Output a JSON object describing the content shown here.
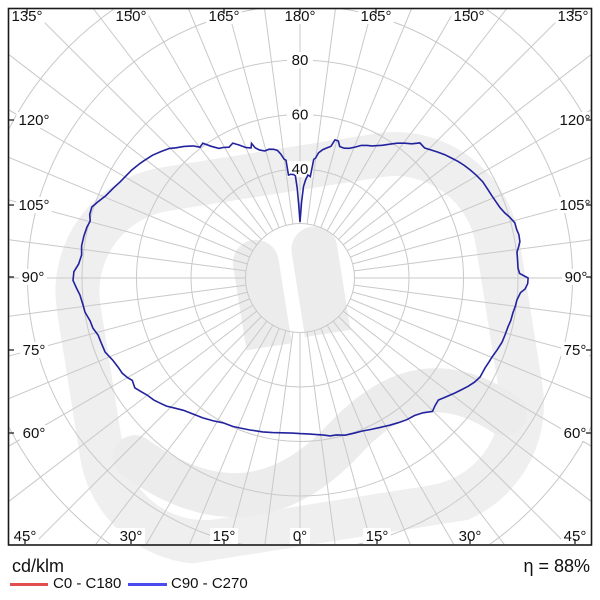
{
  "chart": {
    "unit_label": "cd/klm",
    "efficiency_text": "η = 88%",
    "angle_ring_labels": [
      "135°",
      "150°",
      "165°",
      "180°",
      "165°",
      "150°",
      "135°",
      "120°",
      "105°",
      "90°",
      "75°",
      "60°",
      "120°",
      "105°",
      "90°",
      "75°",
      "60°",
      "45°",
      "30°",
      "15°",
      "0°",
      "15°",
      "30°",
      "45°"
    ],
    "radial_labels": [
      "40",
      "60",
      "80"
    ]
  },
  "legend": [
    {
      "label": "C0 - C180",
      "color": "#e14f4f"
    },
    {
      "label": "C90 - C270",
      "color": "#4a4aee"
    }
  ],
  "colors": {
    "curve": "#22229e",
    "grid": "#c9c9c9",
    "frame": "#1a1a1a",
    "watermark": "#efefef",
    "text": "#111111"
  },
  "chart_data": {
    "type": "polar-line",
    "title": "Luminous intensity distribution (polar photometric curve)",
    "units": "cd/klm",
    "efficiency": "88%",
    "angular_axis": {
      "zero_at": "bottom",
      "label_step_deg": 15,
      "grid_step_deg": 7.5,
      "labels": [
        "0°",
        "15°",
        "30°",
        "45°",
        "60°",
        "75°",
        "90°",
        "105°",
        "120°",
        "135°",
        "150°",
        "165°",
        "180°"
      ]
    },
    "radial_axis": {
      "unit": "cd/klm",
      "gridline_values": [
        20,
        40,
        60,
        80,
        100,
        120
      ],
      "labeled_values": [
        40,
        60,
        80
      ]
    },
    "series": [
      {
        "name": "C0 - C180",
        "color": "#e14f4f",
        "drawn_in_plot": false
      },
      {
        "name": "C90 - C270",
        "color": "#22229e",
        "drawn_in_plot": true,
        "points": [
          [
            -180,
            20.5
          ],
          [
            -179,
            27
          ],
          [
            -178.2,
            33
          ],
          [
            -177.4,
            37.5
          ],
          [
            -176.5,
            38
          ],
          [
            -175,
            38.2
          ],
          [
            -173.6,
            38
          ],
          [
            -173.2,
            43.5
          ],
          [
            -172.4,
            44
          ],
          [
            -171.2,
            46
          ],
          [
            -170,
            47.5
          ],
          [
            -168.5,
            48.2
          ],
          [
            -166.5,
            48.6
          ],
          [
            -164.5,
            48.4
          ],
          [
            -162.5,
            49.2
          ],
          [
            -161,
            50.5
          ],
          [
            -160.2,
            52.5
          ],
          [
            -159.4,
            51
          ],
          [
            -157.5,
            51.8
          ],
          [
            -155.5,
            53.6
          ],
          [
            -153.5,
            55.3
          ],
          [
            -151.5,
            54.6
          ],
          [
            -149.5,
            55.6
          ],
          [
            -148,
            56.1
          ],
          [
            -146,
            58.3
          ],
          [
            -144.2,
            61
          ],
          [
            -142.6,
            60.4
          ],
          [
            -141,
            62.4
          ],
          [
            -138.6,
            64.4
          ],
          [
            -136.4,
            66
          ],
          [
            -134.8,
            67.5
          ],
          [
            -132.4,
            68.9
          ],
          [
            -129.8,
            70.4
          ],
          [
            -127,
            71.6
          ],
          [
            -125.4,
            72.3
          ],
          [
            -122.6,
            73.4
          ],
          [
            -120.2,
            74.1
          ],
          [
            -118,
            74.9
          ],
          [
            -115.6,
            76.1
          ],
          [
            -113,
            77.4
          ],
          [
            -110.6,
            79.3
          ],
          [
            -108.8,
            80.7
          ],
          [
            -106.8,
            80.6
          ],
          [
            -105.2,
            79.8
          ],
          [
            -103.4,
            80.4
          ],
          [
            -101,
            80.8
          ],
          [
            -98.4,
            81
          ],
          [
            -96,
            80.6
          ],
          [
            -93.6,
            81.4
          ],
          [
            -91.6,
            83
          ],
          [
            -89.4,
            83.3
          ],
          [
            -87.4,
            82.1
          ],
          [
            -85.6,
            81
          ],
          [
            -83.2,
            80.3
          ],
          [
            -81,
            79.9
          ],
          [
            -78.4,
            78.6
          ],
          [
            -76.4,
            78.2
          ],
          [
            -74.2,
            77
          ],
          [
            -71.8,
            76.7
          ],
          [
            -69.2,
            76.5
          ],
          [
            -66.4,
            75.1
          ],
          [
            -63.8,
            74.3
          ],
          [
            -61.8,
            74
          ],
          [
            -60,
            73.1
          ],
          [
            -58.6,
            72.1
          ],
          [
            -56.4,
            72.8
          ],
          [
            -54.2,
            71.6
          ],
          [
            -52.6,
            70.7
          ],
          [
            -50.2,
            69.9
          ],
          [
            -48.8,
            69.2
          ],
          [
            -46.2,
            67.9
          ],
          [
            -43.8,
            66.2
          ],
          [
            -41.4,
            64.7
          ],
          [
            -38.4,
            63.6
          ],
          [
            -34.8,
            62.5
          ],
          [
            -31.2,
            61.3
          ],
          [
            -28,
            60.2
          ],
          [
            -24.4,
            59.8
          ],
          [
            -21.8,
            59.3
          ],
          [
            -18.2,
            58.7
          ],
          [
            -13.6,
            58.1
          ],
          [
            -10,
            57.6
          ],
          [
            -6.6,
            57.2
          ],
          [
            -3,
            57
          ],
          [
            0,
            57.1
          ],
          [
            3,
            57.3
          ],
          [
            6,
            57.8
          ],
          [
            8.6,
            58.3
          ],
          [
            10.8,
            59
          ],
          [
            13,
            59.1
          ],
          [
            16,
            60
          ],
          [
            19.2,
            60.3
          ],
          [
            22,
            60.6
          ],
          [
            25.2,
            61.4
          ],
          [
            28.4,
            62.3
          ],
          [
            31.4,
            63.3
          ],
          [
            34.2,
            64.2
          ],
          [
            37,
            65.1
          ],
          [
            39.8,
            65.7
          ],
          [
            42.4,
            67
          ],
          [
            44.8,
            69
          ],
          [
            46.6,
            68.2
          ],
          [
            48.6,
            67.7
          ],
          [
            50.6,
            68.9
          ],
          [
            53.4,
            70.8
          ],
          [
            55.4,
            72.1
          ],
          [
            57.2,
            73.4
          ],
          [
            59.2,
            74.6
          ],
          [
            61.2,
            75.4
          ],
          [
            64,
            75.5
          ],
          [
            66,
            75.9
          ],
          [
            67.6,
            76.2
          ],
          [
            70,
            77
          ],
          [
            72.4,
            77.8
          ],
          [
            74.6,
            78.1
          ],
          [
            76.8,
            78.4
          ],
          [
            78.6,
            78.9
          ],
          [
            80.8,
            79.2
          ],
          [
            82.6,
            79.7
          ],
          [
            84.2,
            80
          ],
          [
            86.2,
            81.1
          ],
          [
            87.2,
            82.7
          ],
          [
            88.6,
            83.6
          ],
          [
            90,
            83.7
          ],
          [
            91.2,
            80.6
          ],
          [
            92.6,
            80.1
          ],
          [
            94.6,
            80.1
          ],
          [
            96.8,
            80.2
          ],
          [
            98.2,
            81.1
          ],
          [
            99.4,
            81.8
          ],
          [
            101.2,
            81.9
          ],
          [
            102.6,
            81.5
          ],
          [
            104.4,
            81.4
          ],
          [
            106.2,
            80.1
          ],
          [
            107.6,
            78.9
          ],
          [
            109.4,
            77.8
          ],
          [
            111.2,
            77.2
          ],
          [
            113.2,
            76.6
          ],
          [
            115.2,
            76.2
          ],
          [
            117.8,
            75.8
          ],
          [
            120.2,
            74.9
          ],
          [
            122.4,
            74
          ],
          [
            124.4,
            73.1
          ],
          [
            126.4,
            72.1
          ],
          [
            128.4,
            70.9
          ],
          [
            130.4,
            69.8
          ],
          [
            132.4,
            68.5
          ],
          [
            134.4,
            67.2
          ],
          [
            136.2,
            66.1
          ],
          [
            138.4,
            66.3
          ],
          [
            140.2,
            64.1
          ],
          [
            142.2,
            62.6
          ],
          [
            144.2,
            61
          ],
          [
            146.2,
            59.1
          ],
          [
            148.2,
            57.3
          ],
          [
            151.4,
            55.2
          ],
          [
            153.2,
            54.5
          ],
          [
            155.2,
            53.6
          ],
          [
            157.2,
            52.1
          ],
          [
            159.2,
            50.9
          ],
          [
            161.2,
            50.3
          ],
          [
            163.2,
            50.4
          ],
          [
            164.4,
            52.2
          ],
          [
            165.8,
            52.3
          ],
          [
            166.8,
            49.6
          ],
          [
            168.2,
            48.8
          ],
          [
            170,
            47.8
          ],
          [
            171.6,
            46.4
          ],
          [
            172.6,
            44.4
          ],
          [
            173.4,
            43.8
          ],
          [
            174.2,
            37.4
          ],
          [
            175.6,
            37.9
          ],
          [
            176.8,
            36
          ],
          [
            177.8,
            33.6
          ],
          [
            178.8,
            28
          ],
          [
            180,
            20.5
          ]
        ]
      }
    ]
  }
}
